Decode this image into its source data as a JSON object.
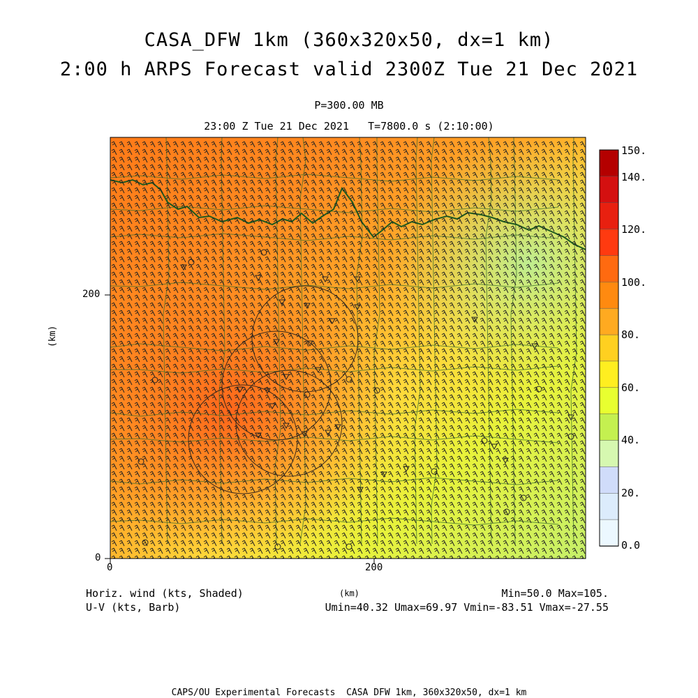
{
  "header": {
    "title": "CASA_DFW 1km (360x320x50, dx=1 km)",
    "subtitle": "2:00 h ARPS Forecast valid 2300Z Tue 21 Dec 2021",
    "level": "P=300.00 MB",
    "time": "23:00 Z Tue 21 Dec 2021   T=7800.0 s (2:10:00)"
  },
  "axes": {
    "x_unit": "(km)",
    "y_unit": "(km)",
    "x_ticks": [
      "0",
      "200"
    ],
    "y_ticks": [
      "0",
      "200"
    ],
    "x_range_km": [
      0,
      360
    ],
    "y_range_km": [
      0,
      320
    ]
  },
  "colorbar": {
    "labels": [
      "150.",
      "140.",
      "120.",
      "100.",
      "80.",
      "60.",
      "40.",
      "20.",
      "0.0"
    ],
    "levels": [
      150,
      140,
      130,
      120,
      110,
      100,
      90,
      80,
      70,
      60,
      50,
      40,
      30,
      20,
      10,
      0
    ],
    "colors": [
      "#b40000",
      "#d41010",
      "#e82010",
      "#ff3a10",
      "#ff6a10",
      "#ff8a10",
      "#ffaa20",
      "#ffd020",
      "#ffee20",
      "#e8ff30",
      "#c4f050",
      "#d6f8b0",
      "#d0dcfa",
      "#dcecfc",
      "#ecf8ff"
    ]
  },
  "footer": {
    "field_label": "Horiz. wind (kts, Shaded)",
    "vector_label": "U-V (kts, Barb)",
    "axis_unit": "(km)",
    "minmax": "Min=50.0 Max=105.",
    "uv_stats": "Umin=40.32 Umax=69.97 Vmin=-83.51 Vmax=-27.55",
    "credit": "CAPS/OU Experimental Forecasts  CASA DFW 1km, 360x320x50, dx=1 km"
  },
  "colors": {
    "barb": "#222222",
    "county_line": "#3a6e2a",
    "border": "#1e5a1e"
  }
}
